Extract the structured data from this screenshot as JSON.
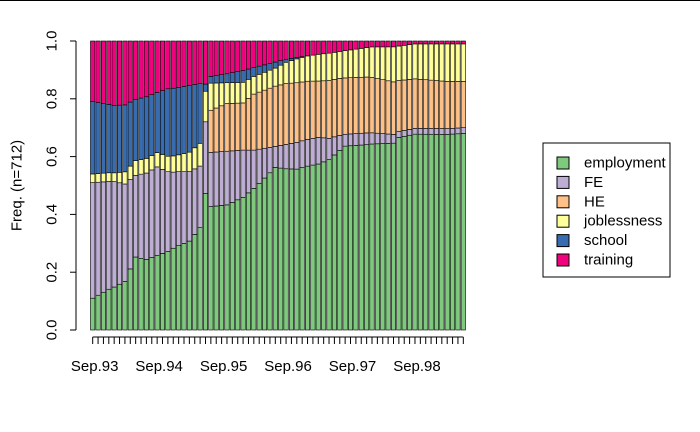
{
  "chart_data": {
    "type": "stacked-bar",
    "title": "",
    "xlabel": "",
    "ylabel": "Freq. (n=712)",
    "ylim": [
      0,
      1
    ],
    "y_ticks": [
      "0.0",
      "0.2",
      "0.4",
      "0.6",
      "0.8",
      "1.0"
    ],
    "x_tick_labels": [
      "Sep.93",
      "Sep.94",
      "Sep.95",
      "Sep.96",
      "Sep.97",
      "Sep.98"
    ],
    "n_months": 70,
    "legend_position": "right",
    "series": [
      {
        "name": "employment",
        "color": "#7fc97f",
        "anchors": [
          [
            0,
            0.11
          ],
          [
            3,
            0.14
          ],
          [
            6,
            0.16
          ],
          [
            8,
            0.25
          ],
          [
            10,
            0.24
          ],
          [
            15,
            0.29
          ],
          [
            18,
            0.32
          ],
          [
            21,
            0.38
          ],
          [
            22,
            0.41
          ],
          [
            25,
            0.42
          ],
          [
            28,
            0.45
          ],
          [
            30,
            0.48
          ],
          [
            34,
            0.54
          ],
          [
            36,
            0.53
          ],
          [
            38,
            0.54
          ],
          [
            40,
            0.55
          ],
          [
            42,
            0.56
          ],
          [
            44,
            0.56
          ],
          [
            47,
            0.62
          ],
          [
            51,
            0.63
          ],
          [
            56,
            0.64
          ],
          [
            57,
            0.67
          ],
          [
            69,
            0.68
          ]
        ]
      },
      {
        "name": "FE",
        "color": "#beaed4",
        "anchors": [
          [
            0,
            0.4
          ],
          [
            4,
            0.36
          ],
          [
            8,
            0.28
          ],
          [
            12,
            0.31
          ],
          [
            15,
            0.27
          ],
          [
            18,
            0.25
          ],
          [
            21,
            0.2
          ],
          [
            22,
            0.18
          ],
          [
            25,
            0.18
          ],
          [
            28,
            0.16
          ],
          [
            30,
            0.13
          ],
          [
            34,
            0.07
          ],
          [
            38,
            0.09
          ],
          [
            42,
            0.09
          ],
          [
            47,
            0.04
          ],
          [
            51,
            0.04
          ],
          [
            56,
            0.03
          ],
          [
            57,
            0.02
          ],
          [
            69,
            0.02
          ]
        ]
      },
      {
        "name": "HE",
        "color": "#fdc086",
        "anchors": [
          [
            0,
            0.0
          ],
          [
            21,
            0.0
          ],
          [
            22,
            0.14
          ],
          [
            25,
            0.16
          ],
          [
            28,
            0.16
          ],
          [
            30,
            0.19
          ],
          [
            34,
            0.2
          ],
          [
            38,
            0.2
          ],
          [
            42,
            0.19
          ],
          [
            46,
            0.19
          ],
          [
            51,
            0.19
          ],
          [
            56,
            0.18
          ],
          [
            60,
            0.17
          ],
          [
            69,
            0.16
          ]
        ]
      },
      {
        "name": "joblessness",
        "color": "#ffff99",
        "anchors": [
          [
            0,
            0.03
          ],
          [
            4,
            0.03
          ],
          [
            8,
            0.05
          ],
          [
            12,
            0.05
          ],
          [
            16,
            0.06
          ],
          [
            20,
            0.08
          ],
          [
            22,
            0.09
          ],
          [
            25,
            0.07
          ],
          [
            28,
            0.07
          ],
          [
            30,
            0.06
          ],
          [
            34,
            0.06
          ],
          [
            38,
            0.08
          ],
          [
            42,
            0.09
          ],
          [
            46,
            0.09
          ],
          [
            51,
            0.1
          ],
          [
            56,
            0.12
          ],
          [
            60,
            0.12
          ],
          [
            66,
            0.13
          ],
          [
            69,
            0.13
          ]
        ]
      },
      {
        "name": "school",
        "color": "#386cb0",
        "anchors": [
          [
            0,
            0.25
          ],
          [
            4,
            0.23
          ],
          [
            8,
            0.21
          ],
          [
            12,
            0.21
          ],
          [
            14,
            0.24
          ],
          [
            18,
            0.24
          ],
          [
            20,
            0.21
          ],
          [
            21,
            0.02
          ],
          [
            25,
            0.03
          ],
          [
            28,
            0.04
          ],
          [
            30,
            0.03
          ],
          [
            34,
            0.02
          ],
          [
            36,
            0.01
          ],
          [
            40,
            0.0
          ],
          [
            69,
            0.0
          ]
        ]
      },
      {
        "name": "training",
        "color": "#f0027f",
        "anchors": [
          [
            0,
            0.21
          ],
          [
            4,
            0.22
          ],
          [
            8,
            0.2
          ],
          [
            12,
            0.18
          ],
          [
            14,
            0.17
          ],
          [
            18,
            0.16
          ],
          [
            20,
            0.15
          ],
          [
            21,
            0.12
          ],
          [
            25,
            0.11
          ],
          [
            28,
            0.1
          ],
          [
            30,
            0.09
          ],
          [
            34,
            0.07
          ],
          [
            36,
            0.06
          ],
          [
            40,
            0.05
          ],
          [
            44,
            0.04
          ],
          [
            48,
            0.03
          ],
          [
            52,
            0.02
          ],
          [
            56,
            0.02
          ],
          [
            60,
            0.01
          ],
          [
            69,
            0.01
          ]
        ]
      }
    ]
  }
}
